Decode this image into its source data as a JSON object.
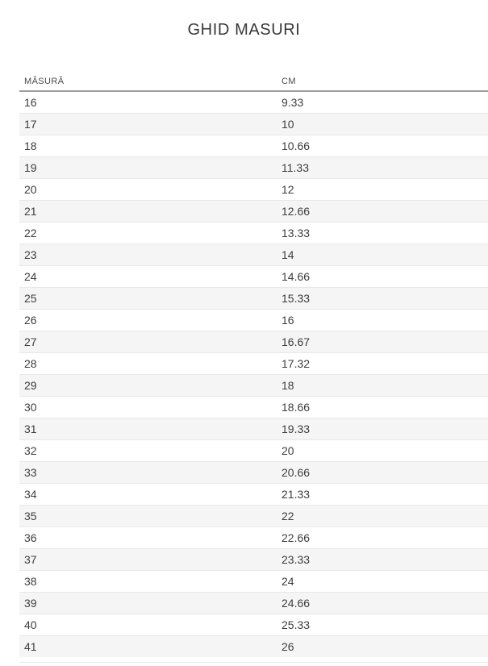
{
  "page": {
    "title": "GHID MASURI"
  },
  "table": {
    "columns": [
      {
        "key": "masura",
        "label": "MĂSURĂ"
      },
      {
        "key": "cm",
        "label": "CM"
      }
    ],
    "rows": [
      {
        "masura": "16",
        "cm": "9.33"
      },
      {
        "masura": "17",
        "cm": "10"
      },
      {
        "masura": "18",
        "cm": "10.66"
      },
      {
        "masura": "19",
        "cm": "11.33"
      },
      {
        "masura": "20",
        "cm": "12"
      },
      {
        "masura": "21",
        "cm": "12.66"
      },
      {
        "masura": "22",
        "cm": "13.33"
      },
      {
        "masura": "23",
        "cm": "14"
      },
      {
        "masura": "24",
        "cm": "14.66"
      },
      {
        "masura": "25",
        "cm": "15.33"
      },
      {
        "masura": "26",
        "cm": "16"
      },
      {
        "masura": "27",
        "cm": "16.67"
      },
      {
        "masura": "28",
        "cm": "17.32"
      },
      {
        "masura": "29",
        "cm": "18"
      },
      {
        "masura": "30",
        "cm": "18.66"
      },
      {
        "masura": "31",
        "cm": "19.33"
      },
      {
        "masura": "32",
        "cm": "20"
      },
      {
        "masura": "33",
        "cm": "20.66"
      },
      {
        "masura": "34",
        "cm": "21.33"
      },
      {
        "masura": "35",
        "cm": "22"
      },
      {
        "masura": "36",
        "cm": "22.66"
      },
      {
        "masura": "37",
        "cm": "23.33"
      },
      {
        "masura": "38",
        "cm": "24"
      },
      {
        "masura": "39",
        "cm": "24.66"
      },
      {
        "masura": "40",
        "cm": "25.33"
      },
      {
        "masura": "41",
        "cm": "26"
      }
    ]
  },
  "colors": {
    "stripe": "#f5f5f5",
    "header_border": "#9d9d9d",
    "row_border": "#e8e8e8",
    "text": "#3d3d3d"
  }
}
